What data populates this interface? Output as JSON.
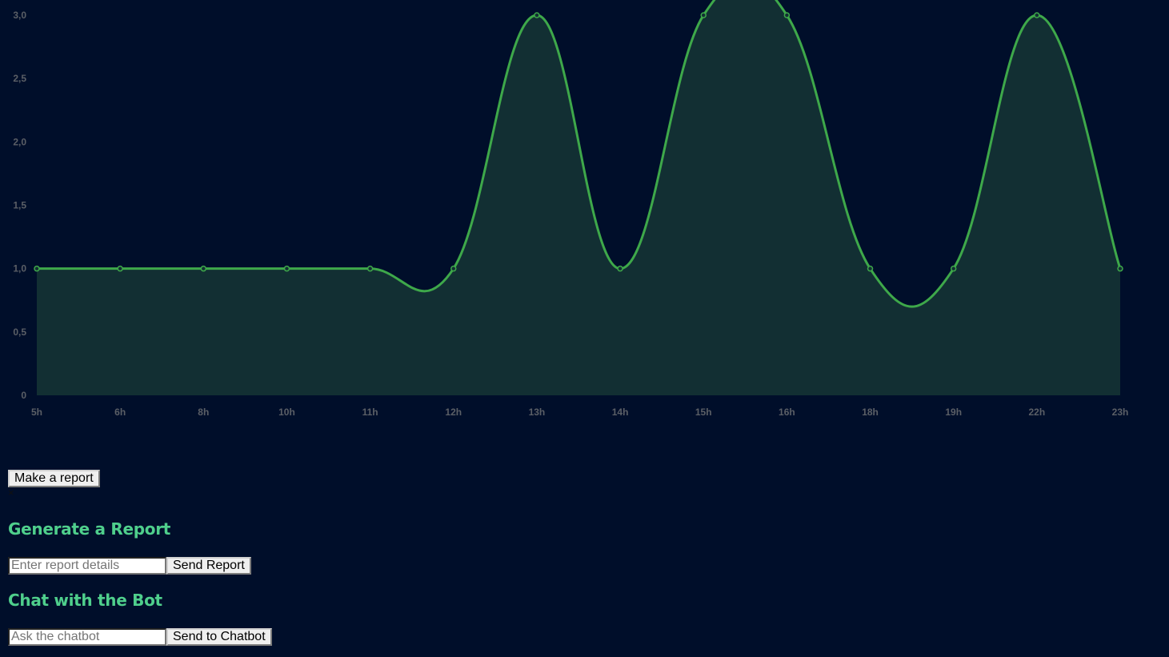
{
  "chart_data": {
    "type": "area",
    "smooth": true,
    "categories": [
      "5h",
      "6h",
      "8h",
      "10h",
      "11h",
      "12h",
      "13h",
      "14h",
      "15h",
      "16h",
      "18h",
      "19h",
      "22h",
      "23h"
    ],
    "series": [
      {
        "values": [
          1,
          1,
          1,
          1,
          1,
          1,
          3,
          1,
          3,
          3,
          1,
          1,
          3,
          1
        ]
      }
    ],
    "yticks": [
      "0",
      "0,5",
      "1,0",
      "1,5",
      "2,0",
      "2,5",
      "3,0"
    ],
    "ylim": [
      0,
      3
    ],
    "line_color": "#3ea84a",
    "fill_color": "#122f33",
    "tick_color": "#5b5f66",
    "grid": false,
    "legend": false
  },
  "make_report_button": {
    "label": "Make a report"
  },
  "close_icon": {
    "glyph": "×"
  },
  "report_section": {
    "title": "Generate a Report",
    "input_placeholder": "Enter report details",
    "send_label": "Send Report"
  },
  "chat_section": {
    "title": "Chat with the Bot",
    "input_placeholder": "Ask the chatbot",
    "send_label": "Send to Chatbot"
  },
  "colors": {
    "background": "#000e2a",
    "heading": "#4fcf8c"
  }
}
